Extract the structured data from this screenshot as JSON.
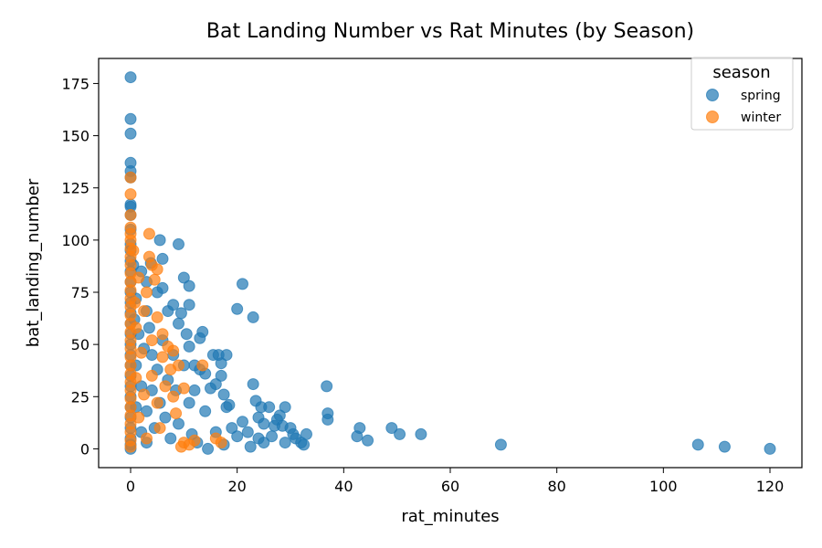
{
  "chart_data": {
    "type": "scatter",
    "title": "Bat Landing Number vs Rat Minutes (by Season)",
    "xlabel": "rat_minutes",
    "ylabel": "bat_landing_number",
    "xlim": [
      -6,
      126
    ],
    "ylim": [
      -9,
      187
    ],
    "xticks": [
      0,
      20,
      40,
      60,
      80,
      100,
      120
    ],
    "yticks": [
      0,
      25,
      50,
      75,
      100,
      125,
      150,
      175
    ],
    "grid": false,
    "legend": {
      "title": "season",
      "placement": "top-right"
    },
    "series": [
      {
        "name": "spring",
        "color": "#1f77b4",
        "points": [
          [
            0,
            178
          ],
          [
            0,
            158
          ],
          [
            0,
            151
          ],
          [
            0,
            137
          ],
          [
            0,
            133
          ],
          [
            0,
            130
          ],
          [
            0,
            117
          ],
          [
            0,
            116
          ],
          [
            0,
            112
          ],
          [
            0,
            105
          ],
          [
            0,
            98
          ],
          [
            0,
            95
          ],
          [
            0,
            90
          ],
          [
            0,
            85
          ],
          [
            0,
            80
          ],
          [
            0,
            75
          ],
          [
            0,
            70
          ],
          [
            0,
            65
          ],
          [
            0,
            60
          ],
          [
            0,
            55
          ],
          [
            0,
            50
          ],
          [
            0,
            45
          ],
          [
            0,
            40
          ],
          [
            0,
            35
          ],
          [
            0,
            30
          ],
          [
            0,
            25
          ],
          [
            0,
            20
          ],
          [
            0,
            15
          ],
          [
            0,
            10
          ],
          [
            0,
            5
          ],
          [
            0,
            2
          ],
          [
            0,
            0
          ],
          [
            0.5,
            88
          ],
          [
            0.7,
            62
          ],
          [
            1,
            72
          ],
          [
            1,
            40
          ],
          [
            1,
            20
          ],
          [
            1.5,
            55
          ],
          [
            2,
            85
          ],
          [
            2,
            30
          ],
          [
            2,
            8
          ],
          [
            2.5,
            48
          ],
          [
            3,
            80
          ],
          [
            3,
            66
          ],
          [
            3,
            18
          ],
          [
            3,
            3
          ],
          [
            3.5,
            58
          ],
          [
            3.8,
            89
          ],
          [
            4,
            28
          ],
          [
            4,
            45
          ],
          [
            4.5,
            10
          ],
          [
            5,
            75
          ],
          [
            5,
            38
          ],
          [
            5.5,
            100
          ],
          [
            5.5,
            22
          ],
          [
            6,
            77
          ],
          [
            6,
            91
          ],
          [
            6,
            52
          ],
          [
            6.5,
            15
          ],
          [
            7,
            33
          ],
          [
            7,
            66
          ],
          [
            7.5,
            5
          ],
          [
            8,
            69
          ],
          [
            8,
            45
          ],
          [
            8.5,
            28
          ],
          [
            9,
            98
          ],
          [
            9,
            60
          ],
          [
            9,
            12
          ],
          [
            9.5,
            65
          ],
          [
            10,
            82
          ],
          [
            10,
            40
          ],
          [
            10.5,
            55
          ],
          [
            11,
            78
          ],
          [
            11,
            69
          ],
          [
            11,
            49
          ],
          [
            11,
            22
          ],
          [
            11.5,
            7
          ],
          [
            12,
            40
          ],
          [
            12,
            28
          ],
          [
            12.5,
            3
          ],
          [
            13,
            53
          ],
          [
            13,
            38
          ],
          [
            13.5,
            56
          ],
          [
            14,
            36
          ],
          [
            14,
            18
          ],
          [
            14.5,
            0
          ],
          [
            15,
            29
          ],
          [
            15.5,
            45
          ],
          [
            16,
            31
          ],
          [
            16,
            8
          ],
          [
            16.5,
            45
          ],
          [
            17,
            41
          ],
          [
            17,
            35
          ],
          [
            17.5,
            26
          ],
          [
            17.5,
            2
          ],
          [
            18,
            45
          ],
          [
            18,
            20
          ],
          [
            18.5,
            21
          ],
          [
            19,
            10
          ],
          [
            20,
            67
          ],
          [
            20,
            6
          ],
          [
            21,
            79
          ],
          [
            21,
            13
          ],
          [
            22,
            8
          ],
          [
            22.5,
            1
          ],
          [
            23,
            31
          ],
          [
            23,
            63
          ],
          [
            23.5,
            23
          ],
          [
            24,
            15
          ],
          [
            24,
            5
          ],
          [
            24.5,
            20
          ],
          [
            25,
            12
          ],
          [
            25,
            3
          ],
          [
            26,
            20
          ],
          [
            26.5,
            6
          ],
          [
            27,
            11
          ],
          [
            27.5,
            14
          ],
          [
            28,
            16
          ],
          [
            28.5,
            11
          ],
          [
            29,
            20
          ],
          [
            29,
            3
          ],
          [
            30,
            10
          ],
          [
            30.5,
            7
          ],
          [
            31,
            5
          ],
          [
            32,
            3
          ],
          [
            32.5,
            2
          ],
          [
            33,
            7
          ],
          [
            36.8,
            30
          ],
          [
            37,
            17
          ],
          [
            37,
            14
          ],
          [
            42.5,
            6
          ],
          [
            43,
            10
          ],
          [
            44.5,
            4
          ],
          [
            49,
            10
          ],
          [
            50.5,
            7
          ],
          [
            54.5,
            7
          ],
          [
            69.5,
            2
          ],
          [
            106.5,
            2
          ],
          [
            111.5,
            1
          ],
          [
            120,
            0
          ]
        ]
      },
      {
        "name": "winter",
        "color": "#ff7f0e",
        "points": [
          [
            0,
            130
          ],
          [
            0,
            122
          ],
          [
            0,
            112
          ],
          [
            0,
            106
          ],
          [
            0,
            103
          ],
          [
            0,
            100
          ],
          [
            0,
            96
          ],
          [
            0,
            92
          ],
          [
            0,
            88
          ],
          [
            0,
            84
          ],
          [
            0,
            80
          ],
          [
            0,
            76
          ],
          [
            0,
            72
          ],
          [
            0,
            68
          ],
          [
            0,
            64
          ],
          [
            0,
            60
          ],
          [
            0,
            56
          ],
          [
            0,
            52
          ],
          [
            0,
            48
          ],
          [
            0,
            44
          ],
          [
            0,
            40
          ],
          [
            0,
            36
          ],
          [
            0,
            32
          ],
          [
            0,
            28
          ],
          [
            0,
            24
          ],
          [
            0,
            20
          ],
          [
            0,
            16
          ],
          [
            0,
            12
          ],
          [
            0,
            8
          ],
          [
            0,
            4
          ],
          [
            0,
            1
          ],
          [
            0.5,
            95
          ],
          [
            0.8,
            70
          ],
          [
            1,
            58
          ],
          [
            1,
            34
          ],
          [
            1.5,
            82
          ],
          [
            1.5,
            15
          ],
          [
            2,
            46
          ],
          [
            2.5,
            66
          ],
          [
            2.5,
            26
          ],
          [
            3,
            5
          ],
          [
            3,
            75
          ],
          [
            3.5,
            103
          ],
          [
            3.5,
            92
          ],
          [
            4,
            88
          ],
          [
            4,
            52
          ],
          [
            4,
            35
          ],
          [
            4.5,
            81
          ],
          [
            5,
            86
          ],
          [
            5,
            63
          ],
          [
            5,
            22
          ],
          [
            5.5,
            10
          ],
          [
            6,
            55
          ],
          [
            6,
            44
          ],
          [
            6.5,
            30
          ],
          [
            7,
            49
          ],
          [
            7.5,
            38
          ],
          [
            8,
            47
          ],
          [
            8,
            25
          ],
          [
            8.5,
            17
          ],
          [
            9,
            40
          ],
          [
            9.5,
            1
          ],
          [
            10,
            29
          ],
          [
            10,
            3
          ],
          [
            11,
            2
          ],
          [
            12,
            4
          ],
          [
            13.5,
            40
          ],
          [
            16,
            5
          ],
          [
            17,
            3
          ]
        ]
      }
    ]
  }
}
